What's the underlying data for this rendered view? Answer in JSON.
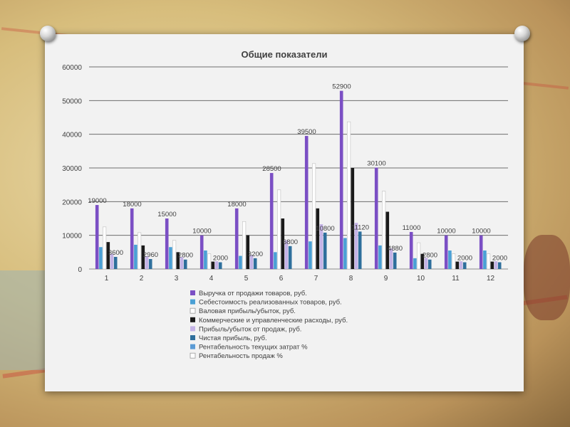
{
  "chart_data": {
    "type": "bar",
    "title": "Общие показатели",
    "categories": [
      "1",
      "2",
      "3",
      "4",
      "5",
      "6",
      "7",
      "8",
      "9",
      "10",
      "11",
      "12"
    ],
    "ylim": [
      0,
      60000
    ],
    "yticks": [
      "0",
      "10000",
      "20000",
      "30000",
      "40000",
      "50000",
      "60000"
    ],
    "grid": true,
    "legend_position": "bottom",
    "series": [
      {
        "name": "Выручка от продажи товаров, руб.",
        "color": "#7b4fc4",
        "values": [
          19000,
          18000,
          15000,
          10000,
          18000,
          28500,
          39500,
          52900,
          30100,
          11000,
          10000,
          10000
        ]
      },
      {
        "name": "Себестоимость реализованных товаров, руб.",
        "color": "#4aa0d5",
        "values": [
          6500,
          7200,
          6500,
          5500,
          3900,
          5000,
          8200,
          9200,
          7000,
          3200,
          5500,
          5500
        ]
      },
      {
        "name": "Валовая прибыль/убыток, руб.",
        "color": "#ffffff",
        "values": [
          12500,
          10800,
          8500,
          4500,
          14100,
          23500,
          31300,
          43700,
          23100,
          7800,
          4500,
          4500
        ]
      },
      {
        "name": "Коммерческие и управленческие расходы, руб.",
        "color": "#1a1a1a",
        "values": [
          8000,
          7000,
          5000,
          2200,
          10000,
          15000,
          18000,
          30000,
          17000,
          4500,
          2200,
          2200
        ]
      },
      {
        "name": "Прибыль/убыток от продаж, руб.",
        "color": "#c4b3e6",
        "values": [
          4500,
          3800,
          3500,
          2300,
          4100,
          8500,
          13300,
          13700,
          6100,
          3300,
          2300,
          2300
        ]
      },
      {
        "name": "Чистая прибыль, руб.",
        "color": "#2e6f9c",
        "values": [
          3600,
          2960,
          2800,
          2000,
          3200,
          6800,
          10800,
          11120,
          4880,
          2800,
          2000,
          2000
        ]
      },
      {
        "name": "Рентабельность текущих затрат %",
        "color": "#5b9bd5",
        "values": [
          0,
          0,
          0,
          0,
          0,
          0,
          0,
          0,
          0,
          0,
          0,
          0
        ]
      },
      {
        "name": "Рентабельность продаж %",
        "color": "#ffffff",
        "values": [
          0,
          0,
          0,
          0,
          0,
          0,
          0,
          0,
          0,
          0,
          0,
          0
        ]
      }
    ],
    "data_labels": [
      {
        "category": "1",
        "series": 0,
        "text": "19000"
      },
      {
        "category": "1",
        "series": 5,
        "text": "3600"
      },
      {
        "category": "2",
        "series": 0,
        "text": "18000"
      },
      {
        "category": "2",
        "series": 5,
        "text": "2960"
      },
      {
        "category": "3",
        "series": 0,
        "text": "15000"
      },
      {
        "category": "3",
        "series": 5,
        "text": "2800"
      },
      {
        "category": "4",
        "series": 0,
        "text": "10000"
      },
      {
        "category": "4",
        "series": 5,
        "text": "2000"
      },
      {
        "category": "5",
        "series": 0,
        "text": "18000"
      },
      {
        "category": "5",
        "series": 5,
        "text": "3200"
      },
      {
        "category": "6",
        "series": 0,
        "text": "28500"
      },
      {
        "category": "6",
        "series": 5,
        "text": "6800"
      },
      {
        "category": "7",
        "series": 0,
        "text": "39500"
      },
      {
        "category": "7",
        "series": 5,
        "text": "10800"
      },
      {
        "category": "8",
        "series": 0,
        "text": "52900"
      },
      {
        "category": "8",
        "series": 5,
        "text": "11120"
      },
      {
        "category": "9",
        "series": 0,
        "text": "30100"
      },
      {
        "category": "9",
        "series": 5,
        "text": "4880"
      },
      {
        "category": "10",
        "series": 0,
        "text": "11000"
      },
      {
        "category": "10",
        "series": 5,
        "text": "2800"
      },
      {
        "category": "11",
        "series": 0,
        "text": "10000"
      },
      {
        "category": "11",
        "series": 5,
        "text": "2000"
      },
      {
        "category": "12",
        "series": 0,
        "text": "10000"
      },
      {
        "category": "12",
        "series": 5,
        "text": "2000"
      }
    ]
  }
}
